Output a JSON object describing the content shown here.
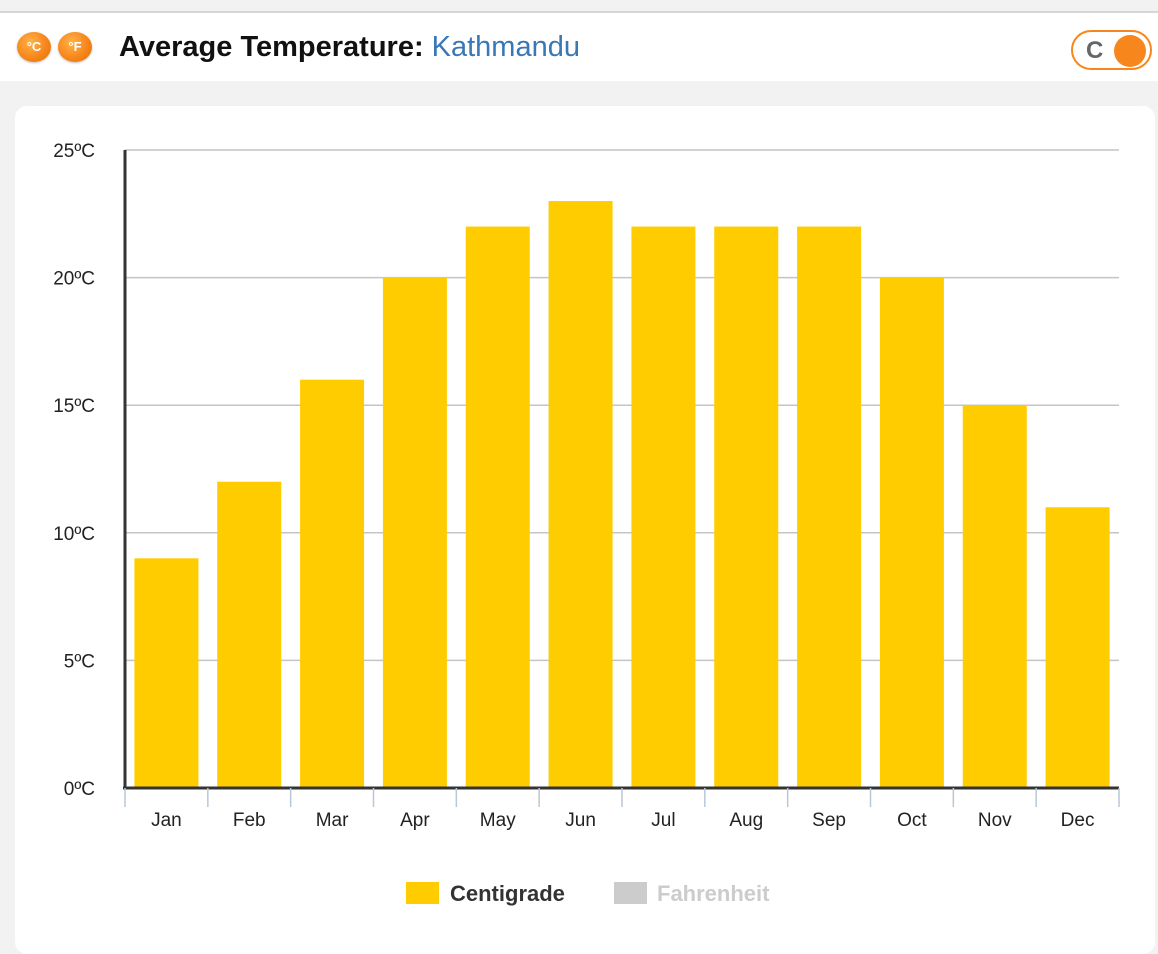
{
  "header": {
    "celsius_icon": "°C",
    "fahrenheit_icon": "°F",
    "title": "Average Temperature:",
    "city": "Kathmandu",
    "toggle_label": "C"
  },
  "colors": {
    "bar": "#ffcc00",
    "accent": "#f7861c",
    "city": "#3a77b5",
    "legend_inactive": "#cccccc"
  },
  "chart_data": {
    "type": "bar",
    "categories": [
      "Jan",
      "Feb",
      "Mar",
      "Apr",
      "May",
      "Jun",
      "Jul",
      "Aug",
      "Sep",
      "Oct",
      "Nov",
      "Dec"
    ],
    "series": [
      {
        "name": "Centigrade",
        "values": [
          9,
          12,
          16,
          20,
          22,
          23,
          22,
          22,
          22,
          20,
          15,
          11
        ]
      }
    ],
    "ylim": [
      0,
      25
    ],
    "yticks": [
      "0ºC",
      "5ºC",
      "10ºC",
      "15ºC",
      "20ºC",
      "25ºC"
    ],
    "grid": true,
    "legend": [
      {
        "label": "Centigrade",
        "active": true
      },
      {
        "label": "Fahrenheit",
        "active": false
      }
    ]
  }
}
